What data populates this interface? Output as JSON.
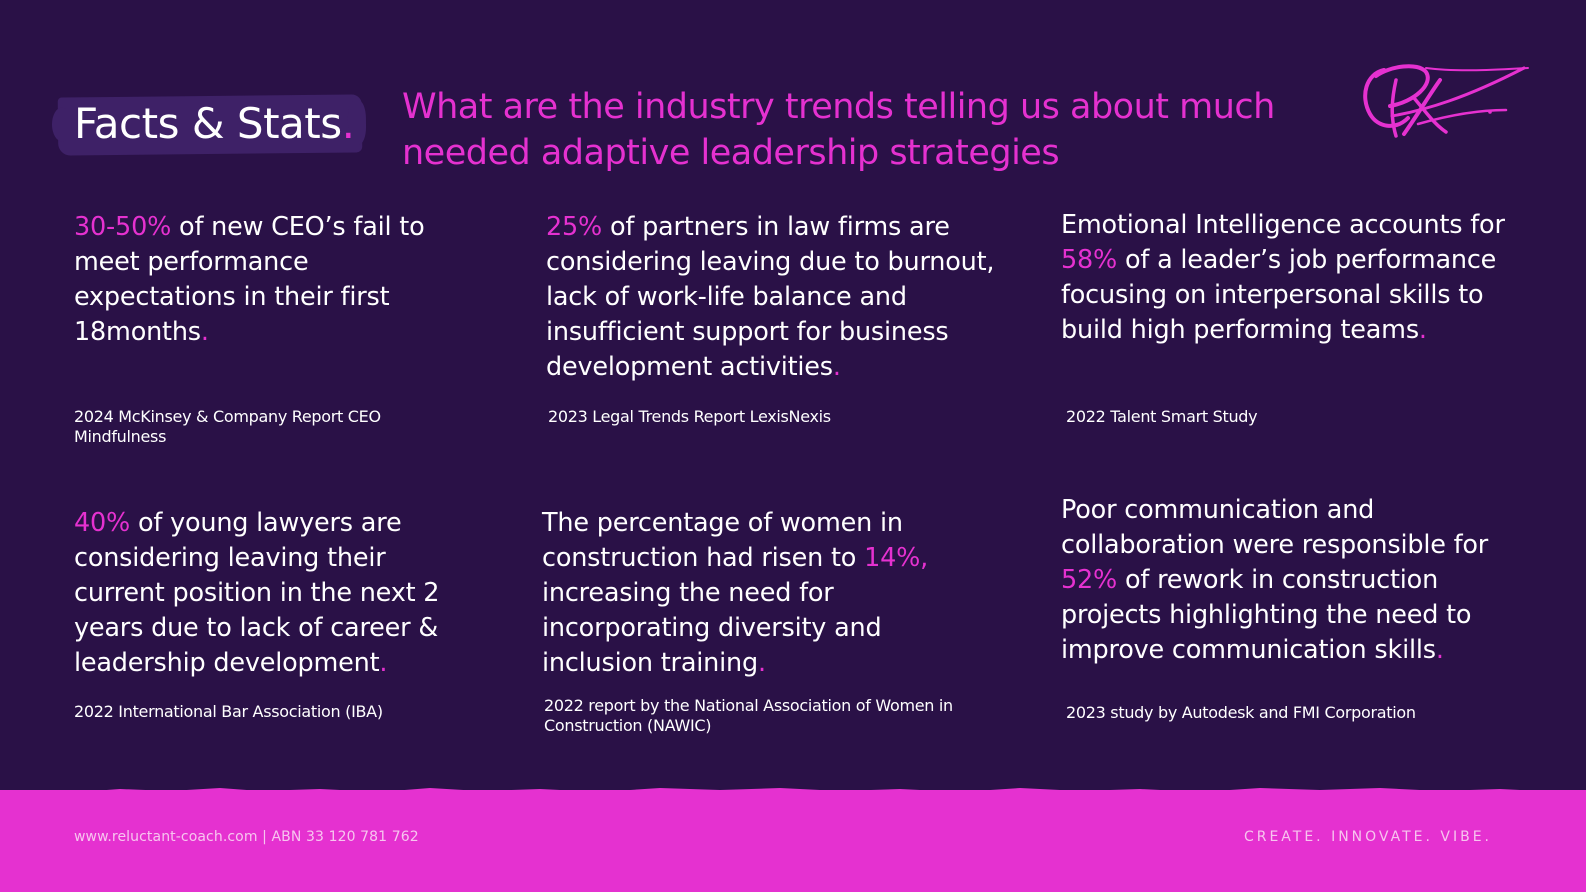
{
  "header": {
    "title": "Facts & Stats",
    "title_dot": ".",
    "headline": "What are the industry trends telling us about much needed adaptive leadership strategies"
  },
  "stats": [
    {
      "pre": "",
      "num": "30-50%",
      "text": " of new CEO’s fail to meet performance expectations in their first 18months",
      "dot": ".",
      "source": "2024 McKinsey & Company Report CEO Mindfulness"
    },
    {
      "pre": "",
      "num": "25%",
      "text": " of partners in law firms are considering leaving due to burnout, lack of work-life balance and insufficient support for business development activities",
      "dot": ".",
      "source": "2023 Legal Trends Report LexisNexis"
    },
    {
      "pre": "Emotional Intelligence accounts for ",
      "num": "58%",
      "text": " of a leader’s job performance focusing on interpersonal skills to build high performing teams",
      "dot": ".",
      "source": "2022 Talent Smart Study"
    },
    {
      "pre": "",
      "num": "40%",
      "text": " of young lawyers are considering leaving their current position in the next 2 years due to lack of career & leadership development",
      "dot": ".",
      "source": "2022 International Bar Association (IBA)"
    },
    {
      "pre": "The percentage of women in construction had risen to ",
      "num": "14%,",
      "text": " increasing the need for incorporating diversity and inclusion training",
      "dot": ".",
      "source": "2022 report by the National Association of Women in Construction (NAWIC)"
    },
    {
      "pre": "Poor communication and collaboration were responsible for ",
      "num": "52%",
      "text": " of rework in construction projects highlighting the need to improve communication skills",
      "dot": ".",
      "source": "2023 study by Autodesk and FMI Corporation"
    }
  ],
  "footer": {
    "left": "www.reluctant-coach.com  | ABN 33 120 781 762",
    "right": "CREATE. INNOVATE. VIBE."
  },
  "colors": {
    "background": "#2a1147",
    "accent": "#e531d0",
    "badge": "#3e2167"
  },
  "icons": {
    "signature": "signature-logo"
  }
}
